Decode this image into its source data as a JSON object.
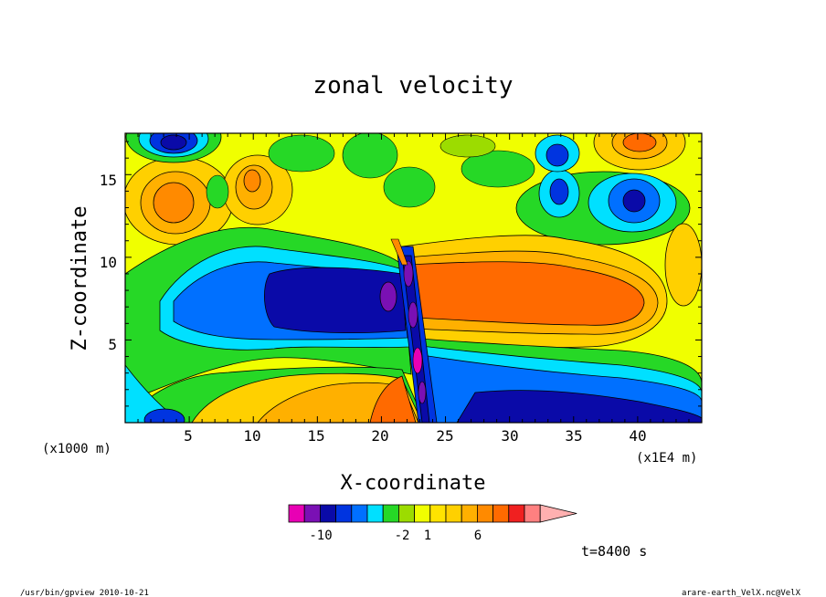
{
  "chart_data": {
    "type": "heatmap",
    "title": "zonal velocity",
    "xlabel": "X-coordinate",
    "ylabel": "Z-coordinate",
    "x_unit_left": "(x1000 m)",
    "x_unit_right": "(x1E4 m)",
    "xlim": [
      0,
      45
    ],
    "ylim": [
      0,
      17.5
    ],
    "xticks": [
      "5",
      "10",
      "15",
      "20",
      "25",
      "30",
      "35",
      "40"
    ],
    "yticks": [
      "5",
      "10",
      "15"
    ],
    "time_label": "t=8400 s",
    "colorbar": {
      "levels": [
        -14,
        -12,
        -10,
        -6,
        -4,
        -3,
        -2,
        -1,
        0,
        1,
        2,
        3,
        4,
        6,
        10,
        12,
        14
      ],
      "labels": [
        "-10",
        "-2",
        "1",
        "6"
      ],
      "colors": [
        "#e800b4",
        "#7a10b4",
        "#0a0aa8",
        "#0034e0",
        "#0070ff",
        "#00e0ff",
        "#26d826",
        "#9cdc00",
        "#f0ff00",
        "#ffe300",
        "#ffd000",
        "#ffb000",
        "#ff8a00",
        "#ff6a00",
        "#f02020",
        "#ff8080",
        "#ffb0b0"
      ]
    },
    "fields": [
      {
        "feature": "upper-level positive band",
        "value_range": [
          0,
          3
        ]
      },
      {
        "feature": "mid-level negative jet (west)",
        "value_range": [
          -10,
          -6
        ]
      },
      {
        "feature": "mid-level positive jet (east)",
        "value_range": [
          6,
          10
        ]
      },
      {
        "feature": "lower-level negative flow (east)",
        "value_range": [
          -10,
          -6
        ]
      },
      {
        "feature": "lower-level positive flow (west)",
        "value_range": [
          3,
          6
        ]
      }
    ]
  },
  "footer": {
    "left": "/usr/bin/gpview   2010-10-21",
    "right": "arare-earth_VelX.nc@VelX"
  }
}
